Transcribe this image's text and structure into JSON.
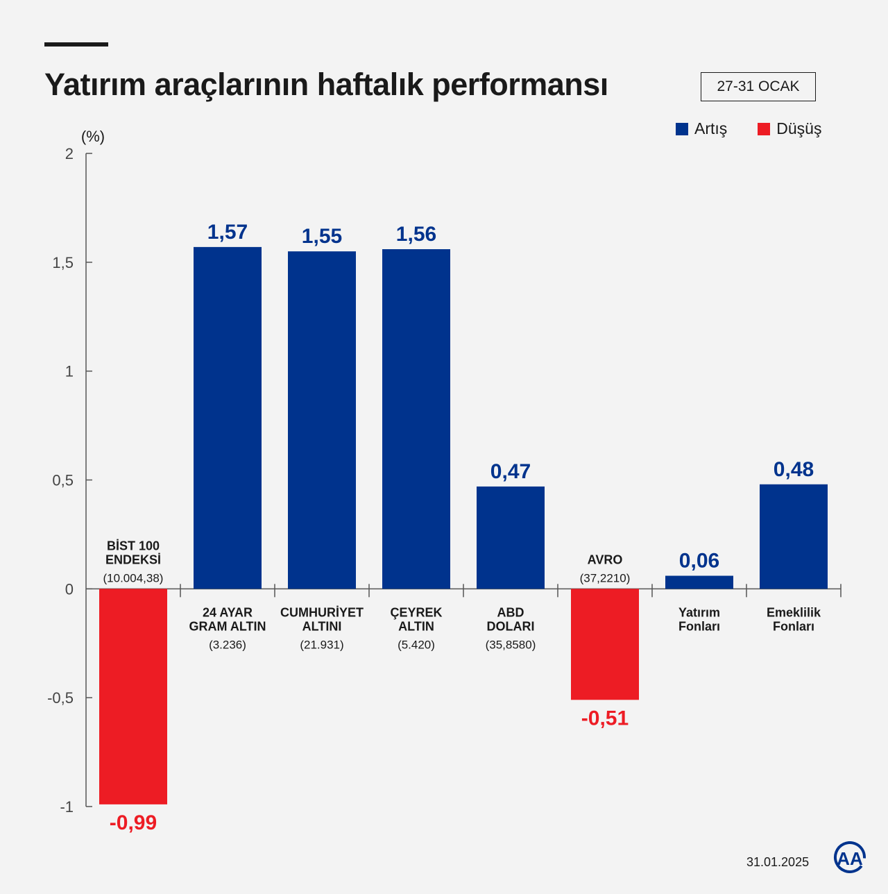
{
  "title": "Yatırım araçlarının haftalık performansı",
  "date_range": "27-31 OCAK",
  "footer_date": "31.01.2025",
  "logo_text": "AA",
  "legend": [
    {
      "label": "Artış",
      "color": "#00338d"
    },
    {
      "label": "Düşüş",
      "color": "#ed1c24"
    }
  ],
  "colors": {
    "positive": "#00338d",
    "negative": "#ed1c24",
    "axis": "#555555"
  },
  "chart_data": {
    "type": "bar",
    "title": "Yatırım araçlarının haftalık performansı",
    "ylabel": "(%)",
    "xlabel": "",
    "ylim": [
      -1,
      2
    ],
    "yticks": [
      2,
      1.5,
      1,
      0.5,
      0,
      -0.5,
      -1
    ],
    "ytick_labels": [
      "2",
      "1,5",
      "1",
      "0,5",
      "0",
      "-0,5",
      "-1"
    ],
    "grid": false,
    "legend_position": "top-right",
    "categories": [
      {
        "name": [
          "BİST 100",
          "ENDEKSİ"
        ],
        "sub": "(10.004,38)"
      },
      {
        "name": [
          "24 AYAR",
          "GRAM ALTIN"
        ],
        "sub": "(3.236)"
      },
      {
        "name": [
          "CUMHURİYET",
          "ALTINI"
        ],
        "sub": "(21.931)"
      },
      {
        "name": [
          "ÇEYREK",
          "ALTIN"
        ],
        "sub": "(5.420)"
      },
      {
        "name": [
          "ABD",
          "DOLARI"
        ],
        "sub": "(35,8580)"
      },
      {
        "name": [
          "AVRO"
        ],
        "sub": "(37,2210)"
      },
      {
        "name": [
          "Yatırım",
          "Fonları"
        ],
        "sub": ""
      },
      {
        "name": [
          "Emeklilik",
          "Fonları"
        ],
        "sub": ""
      }
    ],
    "values": [
      -0.99,
      1.57,
      1.55,
      1.56,
      0.47,
      -0.51,
      0.06,
      0.48
    ],
    "value_labels": [
      "-0,99",
      "1,57",
      "1,55",
      "1,56",
      "0,47",
      "-0,51",
      "0,06",
      "0,48"
    ]
  }
}
